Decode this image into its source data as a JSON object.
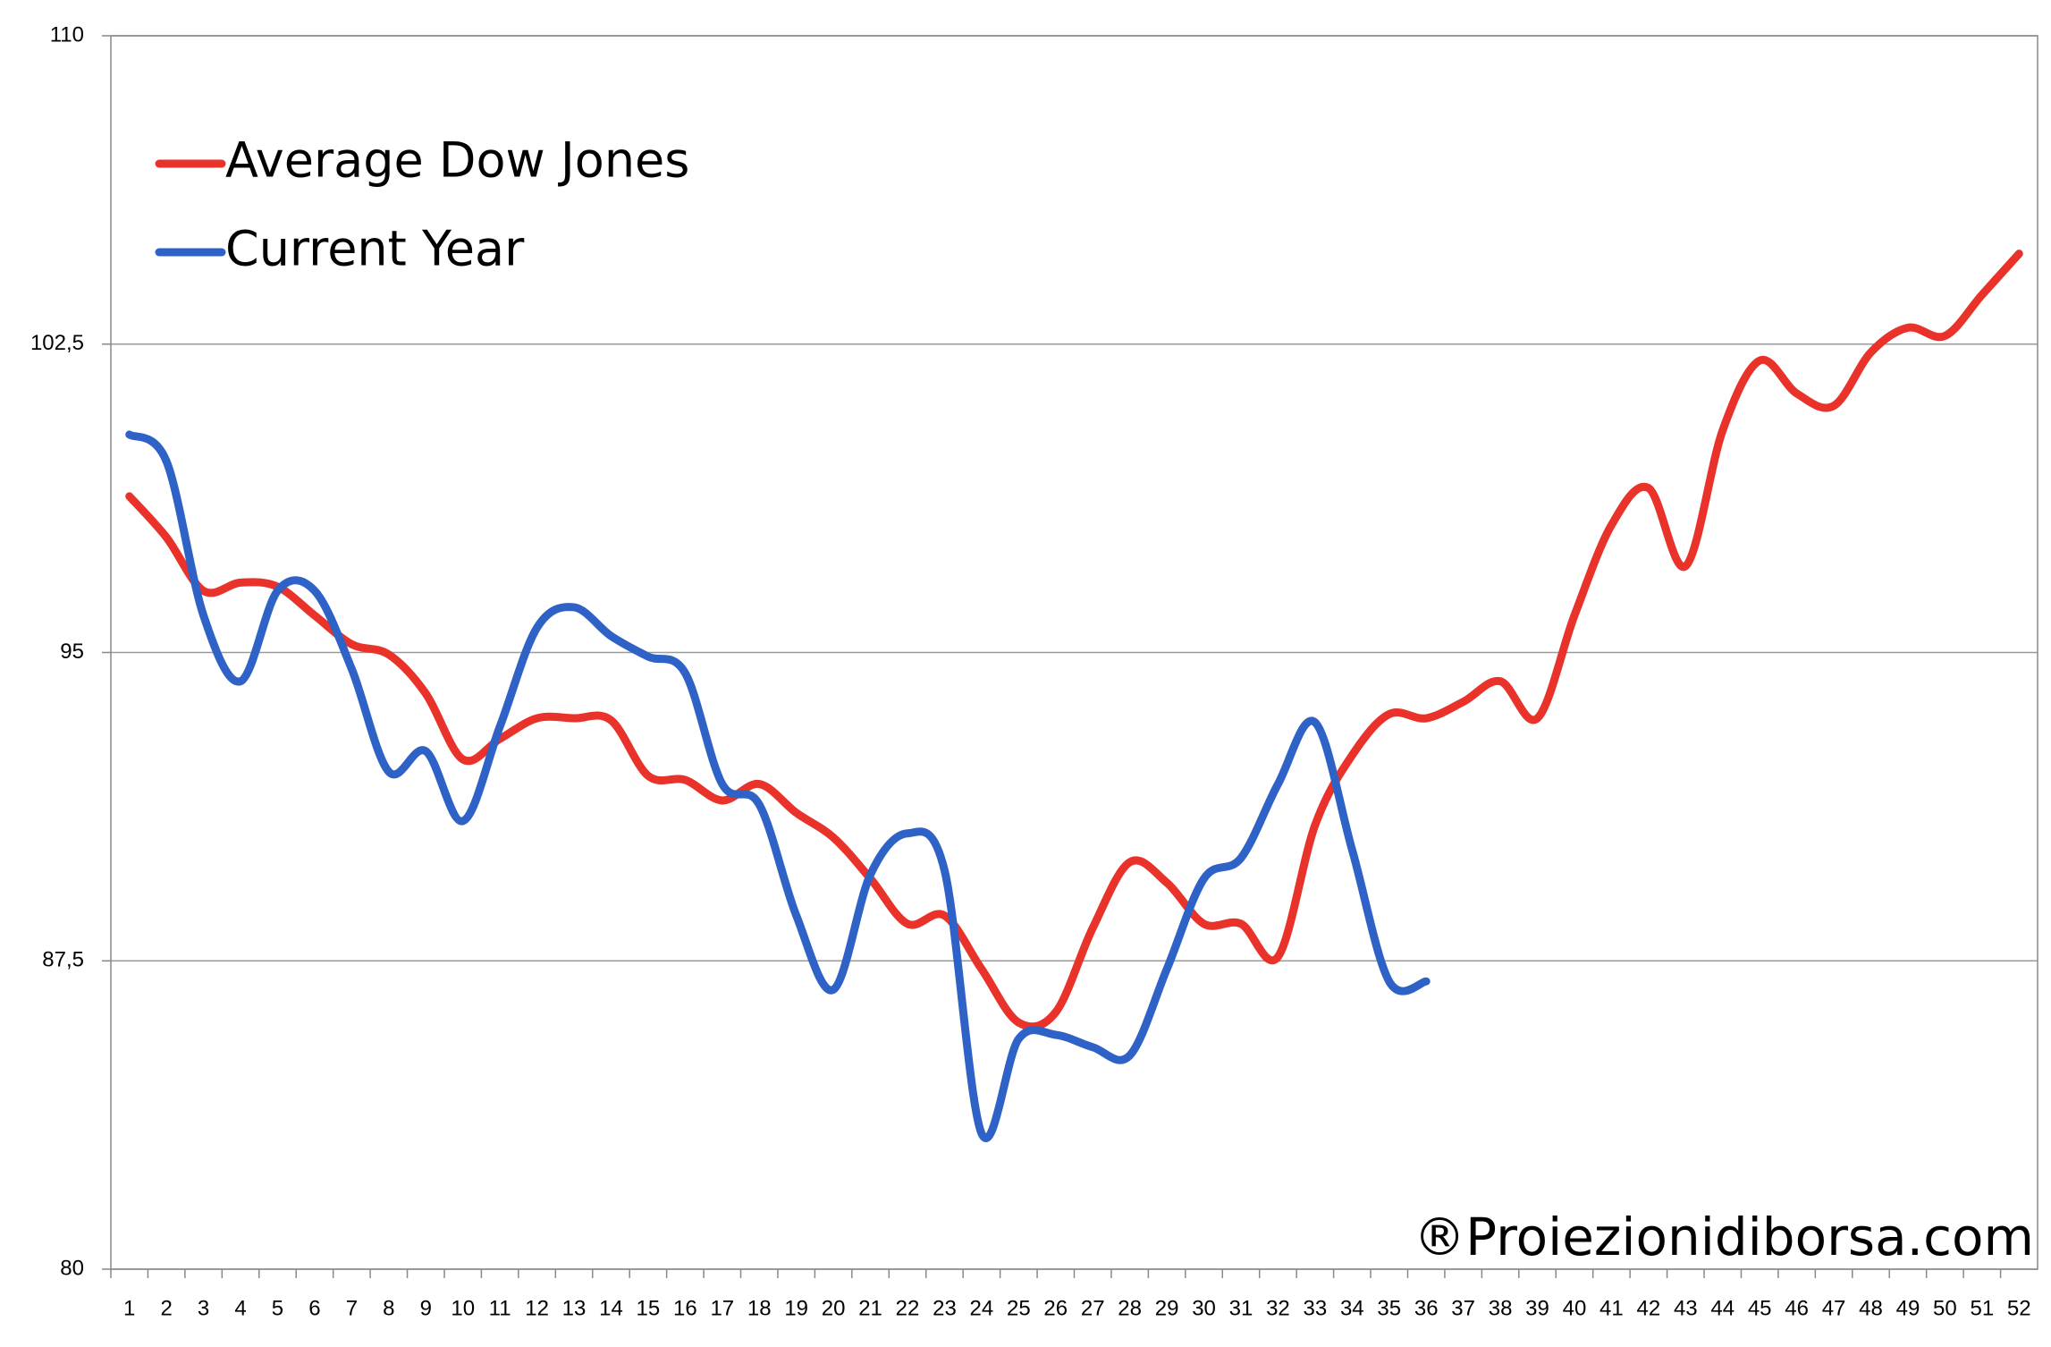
{
  "chart_data": {
    "type": "line",
    "categories": [
      "1",
      "2",
      "3",
      "4",
      "5",
      "6",
      "7",
      "8",
      "9",
      "10",
      "11",
      "12",
      "13",
      "14",
      "15",
      "16",
      "17",
      "18",
      "19",
      "20",
      "21",
      "22",
      "23",
      "24",
      "25",
      "26",
      "27",
      "28",
      "29",
      "30",
      "31",
      "32",
      "33",
      "34",
      "35",
      "36",
      "37",
      "38",
      "39",
      "40",
      "41",
      "42",
      "43",
      "44",
      "45",
      "46",
      "47",
      "48",
      "49",
      "50",
      "51",
      "52"
    ],
    "series": [
      {
        "name": "Average Dow Jones",
        "color": "#e8322a",
        "values": [
          98.8,
          97.8,
          96.5,
          96.7,
          96.6,
          95.9,
          95.2,
          94.95,
          94.0,
          92.4,
          92.9,
          93.4,
          93.4,
          93.35,
          92.0,
          91.9,
          91.4,
          91.8,
          91.1,
          90.5,
          89.5,
          88.4,
          88.6,
          87.3,
          86.0,
          86.25,
          88.3,
          89.9,
          89.4,
          88.4,
          88.4,
          87.6,
          90.8,
          92.5,
          93.5,
          93.4,
          93.8,
          94.3,
          93.4,
          95.9,
          98.1,
          99.0,
          97.1,
          100.4,
          102.1,
          101.3,
          101.0,
          102.3,
          102.9,
          102.7,
          103.7,
          104.7
        ]
      },
      {
        "name": "Current Year",
        "color": "#2e62c6",
        "values": [
          100.3,
          99.65,
          95.9,
          94.3,
          96.5,
          96.5,
          94.6,
          92.1,
          92.6,
          90.9,
          93.2,
          95.6,
          96.1,
          95.4,
          94.9,
          94.5,
          91.8,
          91.3,
          88.6,
          86.8,
          89.6,
          90.6,
          89.7,
          83.3,
          85.6,
          85.7,
          85.4,
          85.2,
          87.3,
          89.5,
          90.0,
          91.8,
          93.3,
          90.2,
          87.0,
          87.0,
          null,
          null,
          null,
          null,
          null,
          null,
          null,
          null,
          null,
          null,
          null,
          null,
          null,
          null,
          null,
          null
        ]
      }
    ],
    "ylim": [
      80,
      110
    ],
    "yticks": [
      80,
      {
        "value": 87.5,
        "label": "87,5"
      },
      95,
      {
        "value": 102.5,
        "label": "102,5"
      },
      110
    ],
    "grid": true,
    "legend": "top-left",
    "annotations": [
      "®Proiezionidiborsa.com"
    ]
  }
}
